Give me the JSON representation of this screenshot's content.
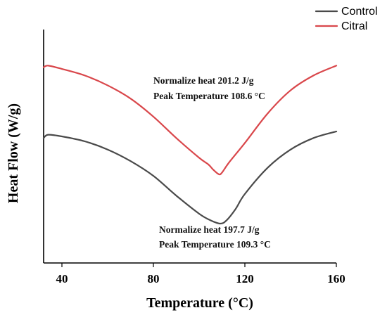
{
  "chart_data": {
    "type": "line",
    "title": "",
    "xlabel": "Temperature (°C)",
    "ylabel": "Heat Flow (W/g)",
    "xlim": [
      32,
      160
    ],
    "ylim": [
      0,
      1
    ],
    "x_ticks": [
      40,
      80,
      120,
      160
    ],
    "y_ticks_visible": false,
    "grid": false,
    "legend_position": "top-right",
    "series": [
      {
        "name": "Control",
        "color": "#4a4a4a",
        "x": [
          32,
          34,
          40,
          50,
          60,
          70,
          80,
          90,
          100,
          105,
          109.3,
          112,
          116,
          120,
          130,
          140,
          150,
          160
        ],
        "y": [
          0.52,
          0.54,
          0.53,
          0.5,
          0.45,
          0.38,
          0.29,
          0.17,
          0.06,
          0.02,
          0.0,
          0.02,
          0.09,
          0.18,
          0.34,
          0.45,
          0.52,
          0.56
        ]
      },
      {
        "name": "Citral",
        "color": "#d9474b",
        "x": [
          32,
          34,
          40,
          50,
          60,
          70,
          80,
          90,
          100,
          104,
          106,
          108.6,
          110,
          113,
          120,
          130,
          140,
          150,
          160
        ],
        "y": [
          0.95,
          0.96,
          0.94,
          0.9,
          0.84,
          0.76,
          0.65,
          0.52,
          0.4,
          0.36,
          0.33,
          0.3,
          0.31,
          0.37,
          0.49,
          0.67,
          0.81,
          0.9,
          0.96
        ]
      }
    ],
    "annotations": [
      {
        "series": "Citral",
        "line1": "Normalize heat 201.2 J/g",
        "line2": "Peak Temperature 108.6 °C"
      },
      {
        "series": "Control",
        "line1": "Normalize heat 197.7 J/g",
        "line2": "Peak Temperature 109.3 °C"
      }
    ]
  }
}
